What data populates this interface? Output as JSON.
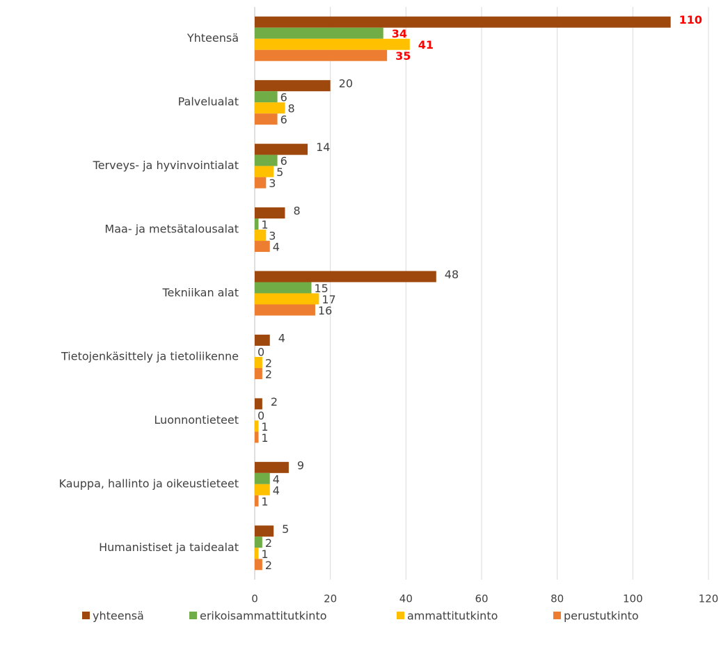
{
  "chart_data": {
    "type": "barh",
    "categories": [
      "Yhteensä",
      "Palvelualat",
      "Terveys- ja hyvinvointialat",
      "Maa- ja metsätalousalat",
      "Tekniikan alat",
      "Tietojenkäsittely ja tietoliikenne",
      "Luonnontieteet",
      "Kauppa, hallinto ja oikeustieteet",
      "Humanistiset ja taidealat"
    ],
    "series": [
      {
        "name": "yhteensä",
        "color": "#9e480e",
        "values": [
          110,
          20,
          14,
          8,
          48,
          4,
          2,
          9,
          5
        ]
      },
      {
        "name": "erikoisammattitutkinto",
        "color": "#70ad47",
        "values": [
          34,
          6,
          6,
          1,
          15,
          0,
          0,
          4,
          2
        ]
      },
      {
        "name": "ammattitutkinto",
        "color": "#ffc000",
        "values": [
          41,
          8,
          5,
          3,
          17,
          2,
          1,
          4,
          1
        ]
      },
      {
        "name": "perustutkinto",
        "color": "#ed7d31",
        "values": [
          35,
          6,
          3,
          4,
          16,
          2,
          1,
          1,
          2
        ]
      }
    ],
    "xlim": [
      0,
      120
    ],
    "xticks": [
      0,
      20,
      40,
      60,
      80,
      100,
      120
    ],
    "grid": true,
    "legend": "bottom"
  }
}
